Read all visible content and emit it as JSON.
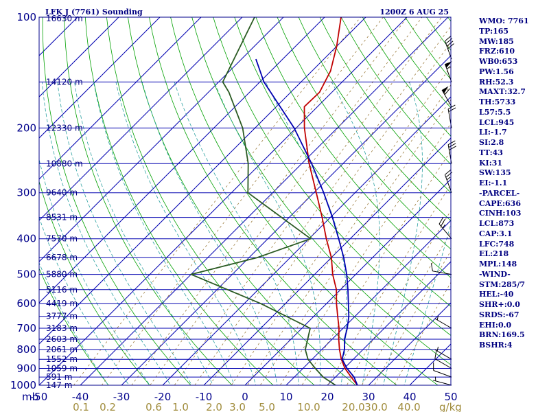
{
  "header": {
    "left": "LFK J (7761) Sounding",
    "right": "1200Z  6 AUG 25"
  },
  "indices": [
    "WMO: 7761",
    "TP:165",
    "MW:185",
    "FRZ:610",
    "WB0:653",
    "PW:1.56",
    "RH:52.3",
    "MAXT:32.7",
    "TH:5733",
    "L57:5.5",
    "LCL:945",
    "LI:-1.7",
    "SI:2.8",
    "TT:43",
    "KI:31",
    "SW:135",
    "EI:-1.1",
    "-PARCEL-",
    "CAPE:636",
    "CINH:103",
    "LCL:873",
    "CAP:3.1",
    "LFC:748",
    "EL:218",
    "MPL:148",
    "-WIND-",
    "STM:285/7",
    "HEL:-40",
    "SHR+:0.0",
    "SRDS:-67",
    "EHI:0.0",
    "BRN:169.5",
    "BSHR:4"
  ],
  "axes": {
    "pressure_unit": "mb",
    "mixing_ratio_unit": "g/kg",
    "pressure_ticks": [
      100,
      200,
      300,
      400,
      500,
      600,
      700,
      800,
      900,
      1000
    ],
    "temperature_ticks": [
      -50,
      -40,
      -30,
      -20,
      -10,
      0,
      10,
      20,
      30,
      40,
      50
    ],
    "mixing_ratio_labels": [
      "0.1",
      "0.2",
      "0.6",
      "1.0",
      "2.0",
      "3.0",
      "5.0",
      "10.0",
      "20.0",
      "30.0",
      "40.0"
    ],
    "height_labels": [
      {
        "p": 100,
        "h": "16630 m"
      },
      {
        "p": 150,
        "h": "14120 m"
      },
      {
        "p": 200,
        "h": "12330 m"
      },
      {
        "p": 250,
        "h": "10880 m"
      },
      {
        "p": 300,
        "h": "9640 m"
      },
      {
        "p": 350,
        "h": "8531 m"
      },
      {
        "p": 400,
        "h": "7570 m"
      },
      {
        "p": 450,
        "h": "6678 m"
      },
      {
        "p": 500,
        "h": "5880 m"
      },
      {
        "p": 550,
        "h": "5116 m"
      },
      {
        "p": 600,
        "h": "4419 m"
      },
      {
        "p": 650,
        "h": "3777 m"
      },
      {
        "p": 700,
        "h": "3183 m"
      },
      {
        "p": 750,
        "h": "2603 m"
      },
      {
        "p": 800,
        "h": "2061 m"
      },
      {
        "p": 850,
        "h": "1552 m"
      },
      {
        "p": 900,
        "h": "1059 m"
      },
      {
        "p": 950,
        "h": "591 m"
      },
      {
        "p": 1000,
        "h": "147 m"
      }
    ]
  },
  "chart_data": {
    "type": "line",
    "title": "",
    "xlim": [
      -50,
      50
    ],
    "ylim": [
      1000,
      100
    ],
    "y_scale": "log-pressure",
    "isotherm_skew": "45 degrees",
    "background_lines": [
      "isobars",
      "skewed isotherms",
      "dry adiabats",
      "moist adiabats",
      "mixing ratio lines"
    ],
    "series": [
      {
        "color": "#c00000",
        "points": [
          [
            1000,
            27.3
          ],
          [
            950,
            23.8
          ],
          [
            900,
            20.2
          ],
          [
            850,
            17.1
          ],
          [
            800,
            14.3
          ],
          [
            750,
            11.6
          ],
          [
            700,
            9.0
          ],
          [
            650,
            5.8
          ],
          [
            600,
            2.4
          ],
          [
            550,
            -1.0
          ],
          [
            500,
            -5.6
          ],
          [
            450,
            -10.0
          ],
          [
            400,
            -15.8
          ],
          [
            350,
            -22.0
          ],
          [
            300,
            -29.4
          ],
          [
            250,
            -38.2
          ],
          [
            200,
            -48.0
          ],
          [
            175,
            -53.2
          ],
          [
            160,
            -53.0
          ],
          [
            140,
            -55.5
          ],
          [
            120,
            -60.0
          ],
          [
            100,
            -66.0
          ]
        ]
      },
      {
        "color": "#2a5a22",
        "points": [
          [
            1000,
            22.0
          ],
          [
            950,
            17.0
          ],
          [
            900,
            13.0
          ],
          [
            850,
            9.0
          ],
          [
            800,
            6.0
          ],
          [
            700,
            2.0
          ],
          [
            600,
            -16.0
          ],
          [
            500,
            -40.0
          ],
          [
            450,
            -28.0
          ],
          [
            400,
            -19.6
          ],
          [
            300,
            -46.0
          ],
          [
            250,
            -53.0
          ],
          [
            200,
            -63.0
          ],
          [
            160,
            -75.0
          ],
          [
            150,
            -79.0
          ],
          [
            100,
            -87.0
          ]
        ]
      },
      {
        "color": "#0000b0",
        "points": [
          [
            1000,
            27.3
          ],
          [
            950,
            24.5
          ],
          [
            900,
            20.7
          ],
          [
            850,
            17.3
          ],
          [
            800,
            15.5
          ],
          [
            750,
            13.0
          ],
          [
            700,
            11.0
          ],
          [
            650,
            8.5
          ],
          [
            600,
            5.3
          ],
          [
            550,
            1.8
          ],
          [
            500,
            -2.2
          ],
          [
            450,
            -7.0
          ],
          [
            400,
            -12.8
          ],
          [
            350,
            -19.5
          ],
          [
            300,
            -27.6
          ],
          [
            250,
            -37.6
          ],
          [
            200,
            -50.5
          ],
          [
            150,
            -69.0
          ],
          [
            130,
            -76.5
          ]
        ]
      }
    ],
    "wind_barbs": [
      {
        "p": 1000,
        "dir": 285,
        "kt": 5
      },
      {
        "p": 950,
        "dir": 290,
        "kt": 10
      },
      {
        "p": 900,
        "dir": 300,
        "kt": 10
      },
      {
        "p": 850,
        "dir": 300,
        "kt": 5
      },
      {
        "p": 700,
        "dir": 300,
        "kt": 5
      },
      {
        "p": 500,
        "dir": 280,
        "kt": 10
      },
      {
        "p": 400,
        "dir": 320,
        "kt": 25
      },
      {
        "p": 300,
        "dir": 340,
        "kt": 25
      },
      {
        "p": 250,
        "dir": 350,
        "kt": 30
      },
      {
        "p": 200,
        "dir": 350,
        "kt": 20
      },
      {
        "p": 175,
        "dir": 330,
        "kt": 60
      },
      {
        "p": 150,
        "dir": 340,
        "kt": 55
      },
      {
        "p": 130,
        "dir": 340,
        "kt": 40
      }
    ]
  }
}
